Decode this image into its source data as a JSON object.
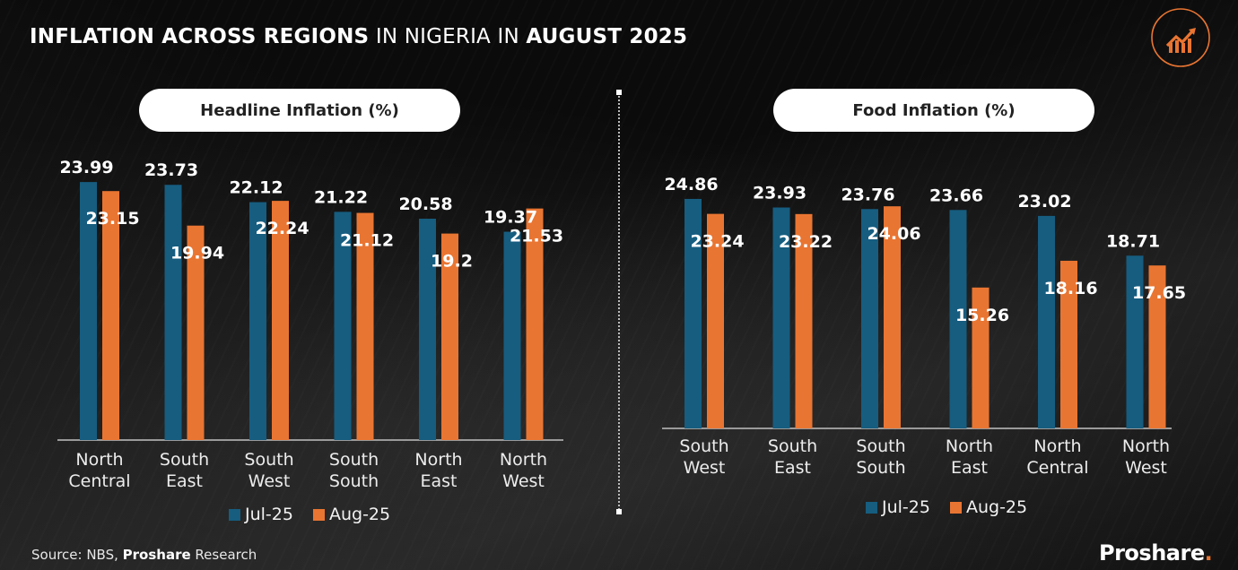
{
  "header": {
    "title_bold_1": "INFLATION ACROSS REGIONS",
    "title_light": " IN NIGERIA IN ",
    "title_bold_2": "AUGUST 2025",
    "logo_icon": "growth-chart-icon"
  },
  "colors": {
    "jul": "#165d80",
    "aug": "#e97532",
    "accent": "#e97532"
  },
  "chart_data": [
    {
      "type": "bar",
      "title": "Headline Inflation (%)",
      "categories": [
        [
          "North",
          "Central"
        ],
        [
          "South",
          "East"
        ],
        [
          "South",
          "West"
        ],
        [
          "South",
          "South"
        ],
        [
          "North",
          "East"
        ],
        [
          "North",
          "West"
        ]
      ],
      "series": [
        {
          "name": "Jul-25",
          "values": [
            23.99,
            23.73,
            22.12,
            21.22,
            20.58,
            19.37
          ]
        },
        {
          "name": "Aug-25",
          "values": [
            23.15,
            19.94,
            22.24,
            21.12,
            19.2,
            21.53
          ]
        }
      ],
      "value_labels": {
        "Jul-25": [
          "23.99",
          "23.73",
          "22.12",
          "21.22",
          "20.58",
          "19.37"
        ],
        "Aug-25": [
          "23.15",
          "19.94",
          "22.24",
          "21.12",
          "19.2",
          "21.53"
        ]
      },
      "xlabel": "",
      "ylabel": "",
      "ylim": [
        0,
        24
      ],
      "grid": false,
      "legend": "bottom"
    },
    {
      "type": "bar",
      "title": "Food Inflation (%)",
      "categories": [
        [
          "South",
          "West"
        ],
        [
          "South",
          "East"
        ],
        [
          "South",
          "South"
        ],
        [
          "North",
          "East"
        ],
        [
          "North",
          "Central"
        ],
        [
          "North",
          "West"
        ]
      ],
      "series": [
        {
          "name": "Jul-25",
          "values": [
            24.86,
            23.93,
            23.76,
            23.66,
            23.02,
            18.71
          ]
        },
        {
          "name": "Aug-25",
          "values": [
            23.24,
            23.22,
            24.06,
            15.26,
            18.16,
            17.65
          ]
        }
      ],
      "value_labels": {
        "Jul-25": [
          "24.86",
          "23.93",
          "23.76",
          "23.66",
          "23.02",
          "18.71"
        ],
        "Aug-25": [
          "23.24",
          "23.22",
          "24.06",
          "15.26",
          "18.16",
          "17.65"
        ]
      },
      "xlabel": "",
      "ylabel": "",
      "ylim": [
        0,
        25
      ],
      "grid": false,
      "legend": "bottom"
    }
  ],
  "legend": {
    "jul": "Jul-25",
    "aug": "Aug-25"
  },
  "footer": {
    "source_prefix": "Source: NBS, ",
    "source_bold": "Proshare",
    "source_suffix": " Research",
    "brand": "Proshare",
    "brand_dot": "."
  }
}
